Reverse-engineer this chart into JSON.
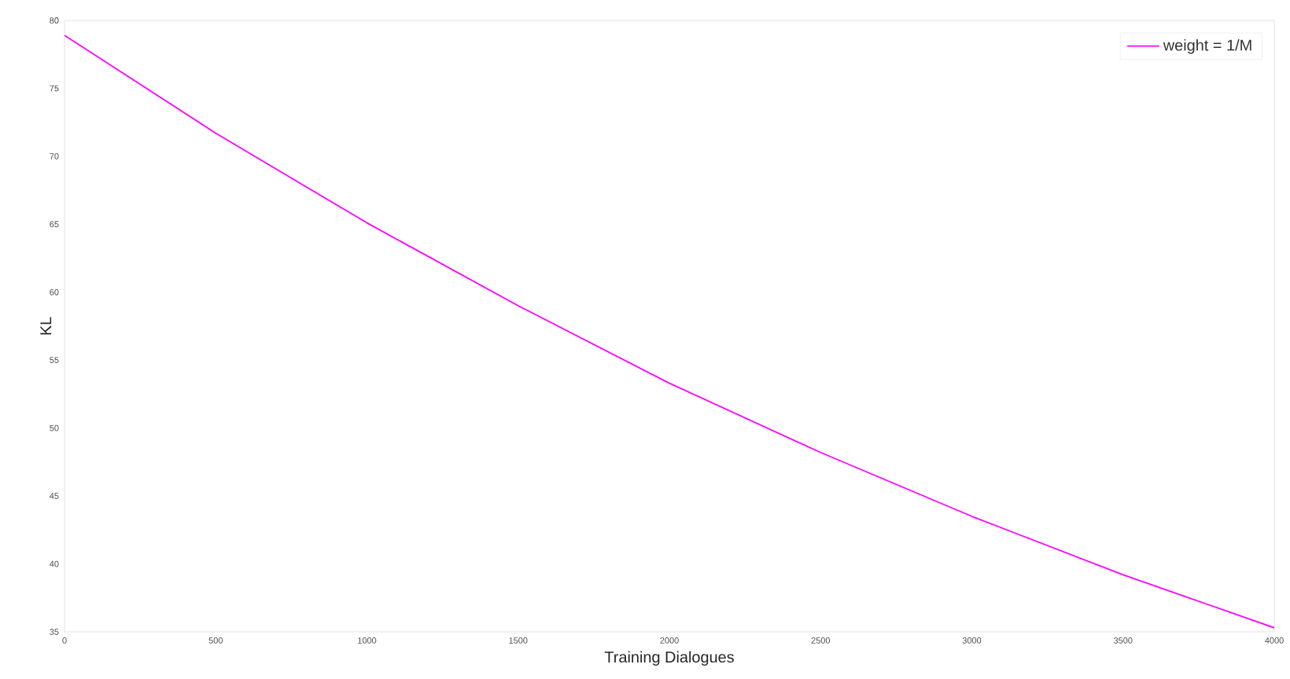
{
  "chart_data": {
    "type": "line",
    "xlabel": "Training Dialogues",
    "ylabel": "KL",
    "x": [
      0,
      500,
      1000,
      1500,
      2000,
      2500,
      3000,
      3500,
      4000
    ],
    "series": [
      {
        "name": "weight = 1/M",
        "color": "#ff00ff",
        "values": [
          78.9,
          71.7,
          65.1,
          59.0,
          53.3,
          48.2,
          43.5,
          39.2,
          35.3
        ]
      }
    ],
    "xlim": [
      0,
      4000
    ],
    "ylim": [
      35,
      80
    ],
    "xticks": [
      0,
      500,
      1000,
      1500,
      2000,
      2500,
      3000,
      3500,
      4000
    ],
    "yticks": [
      35,
      40,
      45,
      50,
      55,
      60,
      65,
      70,
      75,
      80
    ],
    "grid": false,
    "legend": "top right"
  }
}
